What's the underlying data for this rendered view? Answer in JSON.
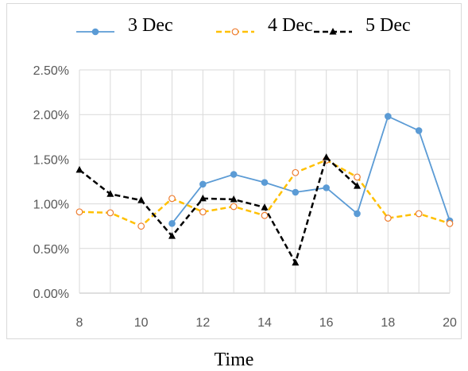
{
  "chart_data": {
    "type": "line",
    "xlabel": "Time",
    "ylabel": "",
    "xlim": [
      8,
      20
    ],
    "ylim": [
      0,
      0.025
    ],
    "x_ticks": [
      "8",
      "10",
      "12",
      "14",
      "16",
      "18",
      "20"
    ],
    "y_ticks": [
      "0.00%",
      "0.50%",
      "1.00%",
      "1.50%",
      "2.00%",
      "2.50%"
    ],
    "grid": true,
    "legend_position": "top",
    "series": [
      {
        "name": "3 Dec",
        "color": "#5b9bd5",
        "line_style": "solid",
        "marker": "circle",
        "points": [
          [
            11,
            0.0078
          ],
          [
            12,
            0.0122
          ],
          [
            13,
            0.0133
          ],
          [
            14,
            0.0124
          ],
          [
            15,
            0.0113
          ],
          [
            16,
            0.0118
          ],
          [
            17,
            0.0089
          ],
          [
            18,
            0.0198
          ],
          [
            19,
            0.0182
          ],
          [
            20,
            0.0081
          ]
        ]
      },
      {
        "name": "4 Dec",
        "color": "#ffc000",
        "line_style": "dashed",
        "marker": "open-circle",
        "points": [
          [
            8,
            0.0091
          ],
          [
            9,
            0.009
          ],
          [
            10,
            0.0075
          ],
          [
            11,
            0.0106
          ],
          [
            12,
            0.0091
          ],
          [
            13,
            0.0097
          ],
          [
            14,
            0.0087
          ],
          [
            15,
            0.0135
          ],
          [
            16,
            0.0149
          ],
          [
            17,
            0.013
          ],
          [
            18,
            0.0084
          ],
          [
            19,
            0.0089
          ],
          [
            20,
            0.0078
          ]
        ]
      },
      {
        "name": "5 Dec",
        "color": "#000000",
        "line_style": "dashed",
        "marker": "triangle",
        "points": [
          [
            8,
            0.0138
          ],
          [
            9,
            0.0111
          ],
          [
            10,
            0.0104
          ],
          [
            11,
            0.0064
          ],
          [
            12,
            0.0106
          ],
          [
            13,
            0.0105
          ],
          [
            14,
            0.0096
          ],
          [
            15,
            0.0034
          ],
          [
            16,
            0.0152
          ],
          [
            17,
            0.012
          ]
        ]
      }
    ]
  }
}
